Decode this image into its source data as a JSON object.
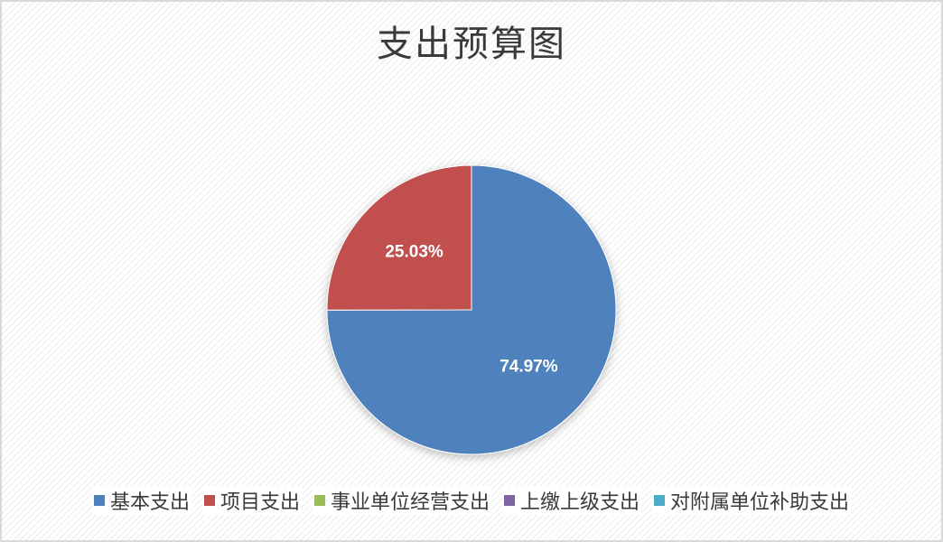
{
  "chart_data": {
    "type": "pie",
    "title": "支出预算图",
    "slices": [
      {
        "name": "基本支出",
        "value": 74.97,
        "label": "74.97%",
        "color": "#4f81bd"
      },
      {
        "name": "项目支出",
        "value": 25.03,
        "label": "25.03%",
        "color": "#c0504d"
      },
      {
        "name": "事业单位经营支出",
        "value": 0,
        "label": "",
        "color": "#9bbb59"
      },
      {
        "name": "上缴上级支出",
        "value": 0,
        "label": "",
        "color": "#8064a2"
      },
      {
        "name": "对附属单位补助支出",
        "value": 0,
        "label": "",
        "color": "#4bacc6"
      }
    ],
    "legend_position": "bottom"
  }
}
